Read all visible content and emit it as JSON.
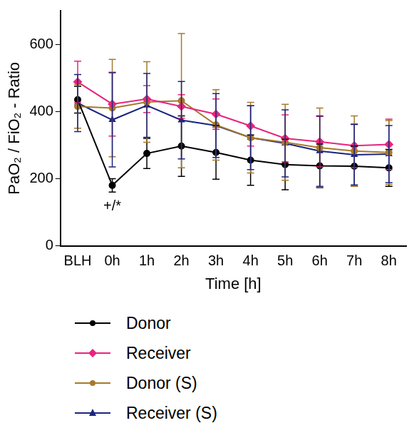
{
  "chart_data": {
    "type": "line",
    "x_label": "Time [h]",
    "y_label": "PaO₂ / FiO₂ - Ratio",
    "categories": [
      "BLH",
      "0h",
      "1h",
      "2h",
      "3h",
      "4h",
      "5h",
      "6h",
      "7h",
      "8h"
    ],
    "ylim": [
      0,
      700
    ],
    "yticks": [
      0,
      200,
      400,
      600
    ],
    "grid": false,
    "legend": "bottom",
    "annotations": [
      {
        "text": "+/*",
        "category": "0h",
        "series": "Donor"
      }
    ],
    "series": [
      {
        "name": "Donor",
        "color": "#000000",
        "marker": "circle",
        "values": [
          435,
          180,
          275,
          297,
          278,
          255,
          242,
          238,
          237,
          232
        ],
        "errors": [
          40,
          20,
          45,
          90,
          80,
          75,
          75,
          65,
          60,
          55
        ]
      },
      {
        "name": "Receiver",
        "color": "#e8247f",
        "marker": "diamond",
        "values": [
          488,
          422,
          437,
          415,
          392,
          357,
          320,
          310,
          298,
          302
        ],
        "errors": [
          62,
          95,
          40,
          35,
          45,
          60,
          70,
          75,
          65,
          75
        ]
      },
      {
        "name": "Donor (S)",
        "color": "#a57a2c",
        "marker": "circle",
        "values": [
          415,
          410,
          428,
          432,
          360,
          322,
          308,
          292,
          282,
          278
        ],
        "errors": [
          65,
          145,
          120,
          200,
          105,
          105,
          113,
          118,
          105,
          95
        ]
      },
      {
        "name": "Receiver (S)",
        "color": "#1c2580",
        "marker": "triangle",
        "values": [
          425,
          375,
          418,
          374,
          358,
          322,
          305,
          282,
          271,
          273
        ],
        "errors": [
          85,
          140,
          95,
          115,
          95,
          95,
          100,
          105,
          90,
          85
        ]
      }
    ]
  }
}
